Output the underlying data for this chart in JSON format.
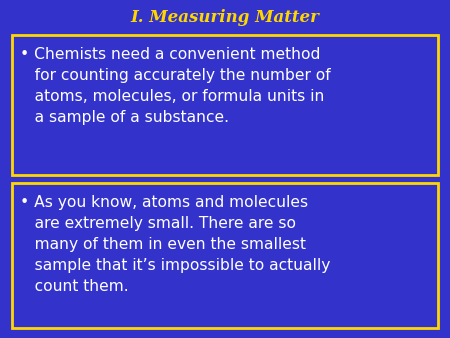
{
  "title": "I. Measuring Matter",
  "title_color": "#FFD700",
  "title_fontsize": 12,
  "background_color": "#3333CC",
  "box_edge_color": "#FFD700",
  "box1_text": "• Chemists need a convenient method\n   for counting accurately the number of\n   atoms, molecules, or formula units in\n   a sample of a substance.",
  "box2_text": "• As you know, atoms and molecules\n   are extremely small. There are so\n   many of them in even the smallest\n   sample that it’s impossible to actually\n   count them.",
  "box1_text_color": "#FFFFFF",
  "box2_text_color": "#FFFFFF",
  "text_fontsize": 11.2,
  "figsize": [
    4.5,
    3.38
  ],
  "dpi": 100
}
